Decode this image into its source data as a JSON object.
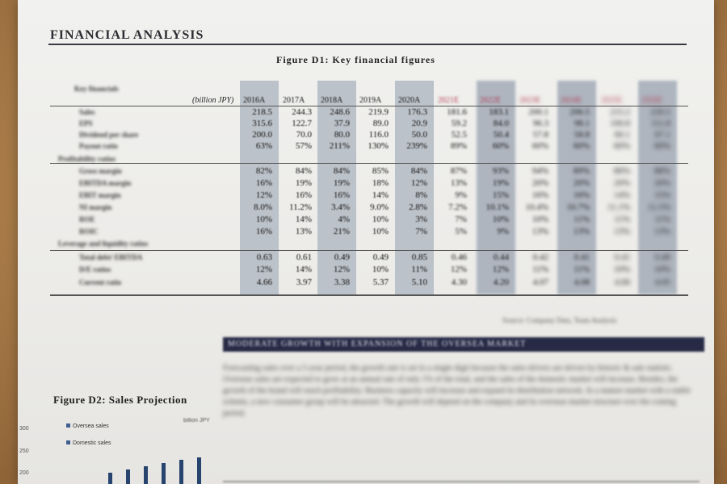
{
  "section_title": "FINANCIAL ANALYSIS",
  "figure_d1_title": "Figure D1: Key financial figures",
  "table": {
    "top_label": "Key financials",
    "unit": "(billion JPY)",
    "years": [
      "2016A",
      "2017A",
      "2018A",
      "2019A",
      "2020A",
      "2021E",
      "2022E",
      "2023E",
      "2024E",
      "2025E",
      "2026E"
    ],
    "rows": [
      {
        "label": "Sales",
        "values": [
          "218.5",
          "244.3",
          "248.6",
          "219.9",
          "176.3",
          "181.6",
          "183.1",
          "200.1",
          "206.5",
          "215.2",
          "220.5"
        ]
      },
      {
        "label": "EPS",
        "values": [
          "315.6",
          "122.7",
          "37.9",
          "89.0",
          "20.9",
          "59.2",
          "84.0",
          "96.3",
          "98.1",
          "100.8",
          "111.8"
        ]
      },
      {
        "label": "Dividend per share",
        "values": [
          "200.0",
          "70.0",
          "80.0",
          "116.0",
          "50.0",
          "52.5",
          "50.4",
          "57.8",
          "58.8",
          "60.1",
          "67.1"
        ]
      },
      {
        "label": "Payout ratio",
        "values": [
          "63%",
          "57%",
          "211%",
          "130%",
          "239%",
          "89%",
          "60%",
          "60%",
          "60%",
          "60%",
          "60%"
        ]
      },
      {
        "label": "Profitability ratios",
        "values": []
      },
      {
        "label": "Gross margin",
        "values": [
          "82%",
          "84%",
          "84%",
          "85%",
          "84%",
          "87%",
          "93%",
          "94%",
          "89%",
          "86%",
          "88%"
        ]
      },
      {
        "label": "EBITDA margin",
        "values": [
          "16%",
          "19%",
          "19%",
          "18%",
          "12%",
          "13%",
          "19%",
          "20%",
          "20%",
          "20%",
          "20%"
        ]
      },
      {
        "label": "EBIT margin",
        "values": [
          "12%",
          "16%",
          "16%",
          "14%",
          "8%",
          "9%",
          "15%",
          "16%",
          "16%",
          "14%",
          "15%"
        ]
      },
      {
        "label": "NI margin",
        "values": [
          "8.0%",
          "11.2%",
          "3.4%",
          "9.0%",
          "2.8%",
          "7.2%",
          "10.1%",
          "10.4%",
          "10.7%",
          "11.1%",
          "11.5%"
        ]
      },
      {
        "label": "ROE",
        "values": [
          "10%",
          "14%",
          "4%",
          "10%",
          "3%",
          "7%",
          "10%",
          "10%",
          "11%",
          "11%",
          "11%"
        ]
      },
      {
        "label": "ROIC",
        "values": [
          "16%",
          "13%",
          "21%",
          "10%",
          "7%",
          "5%",
          "9%",
          "13%",
          "13%",
          "13%",
          "13%"
        ]
      },
      {
        "label": "Leverage and liquidity ratios",
        "values": []
      },
      {
        "label": "Total debt/ EBITDA",
        "values": [
          "0.63",
          "0.61",
          "0.49",
          "0.49",
          "0.85",
          "0.46",
          "0.44",
          "0.42",
          "0.41",
          "0.41",
          "0.40"
        ]
      },
      {
        "label": "D/E ratios",
        "values": [
          "12%",
          "14%",
          "12%",
          "10%",
          "11%",
          "12%",
          "12%",
          "11%",
          "11%",
          "10%",
          "10%"
        ]
      },
      {
        "label": "Current ratio",
        "values": [
          "4.66",
          "3.97",
          "3.38",
          "5.37",
          "5.10",
          "4.30",
          "4.20",
          "4.07",
          "4.08",
          "4.06",
          "4.05"
        ]
      }
    ]
  },
  "source": "Source: Company Data, Team Analysis",
  "band_heading": "MODERATE GROWTH WITH EXPANSION OF THE OVERSEA MARKET",
  "paragraph": "Forecasting sales over a 5-year period, the growth rate is set in a single digit because the sales drivers are driven by historic & sale statistic. Overseas sales are expected to grow at an annual rate of only 1% of the total, and the sales of the domestic market will increase. Besides, the growth of the brand will reach profitability. Business capacity will increase and expand its distribution network. In a mature market with a stable scheme, a new consumer group will be attracted. The growth will depend on the company and its overseas market structure over the coming period.",
  "figure_d2_title": "Figure D2: Sales Projection",
  "chart_data": {
    "type": "bar",
    "title": "Figure D2: Sales Projection",
    "ylabel": "billion JPY",
    "yticks": [
      300,
      250,
      200
    ],
    "series": [
      {
        "name": "Oversea sales"
      },
      {
        "name": "Domestic sales"
      }
    ],
    "legend_position": "top-left"
  },
  "colors": {
    "paper": "#eeeeec",
    "shade": "#bcc2c9",
    "band": "#262a45",
    "future_year": "#b23b50"
  }
}
